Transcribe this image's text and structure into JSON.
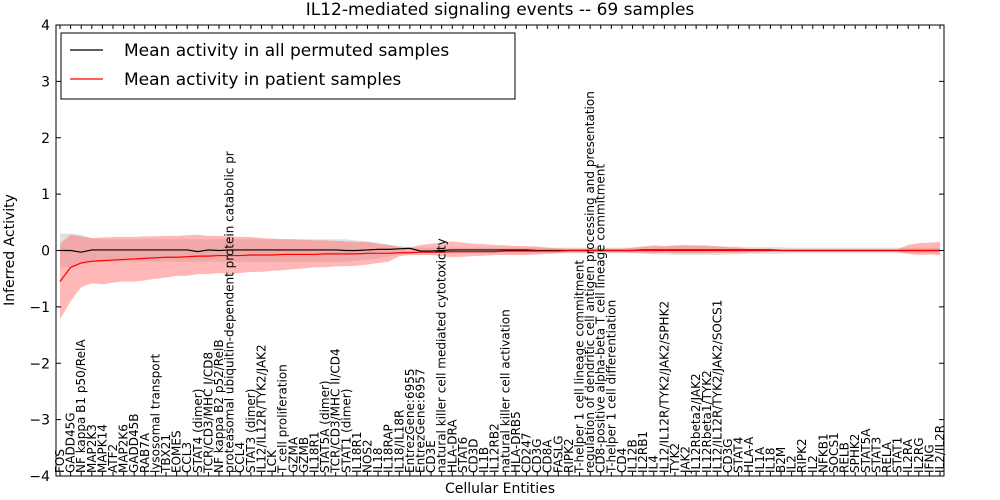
{
  "chart_data": {
    "type": "line",
    "title": "IL12-mediated signaling events -- 69 samples",
    "xlabel": "Cellular Entities",
    "ylabel": "Inferred Activity",
    "ylim": [
      -4,
      4
    ],
    "yticks": [
      -4,
      -3,
      -2,
      -1,
      0,
      1,
      2,
      3,
      4
    ],
    "grid": false,
    "legend_position": "top-left",
    "colors": {
      "permuted": "#000000",
      "patient": "#ff0000",
      "permuted_band": "#c8c8c8",
      "patient_band": "#ff7070"
    },
    "categories": [
      "FOS",
      "GADD45G",
      "NF kappa B1 p50/RelA",
      "MAP2K3",
      "MAPK14",
      "ATF2",
      "MAP2K6",
      "GADD45B",
      "RAB7A",
      "lysosomal transport",
      "TBX21",
      "EOMES",
      "CCL3",
      "STAT4 (dimer)",
      "TCR/CD3/MHC I/CD8",
      "NF kappa B2 p52/RelB",
      "proteasomal ubiquitin-dependent protein catabolic pr",
      "CCL4",
      "STAT3 (dimer)",
      "IL12/IL12R/TYK2/JAK2",
      "LCK",
      "T cell proliferation",
      "GZMA",
      "GZMB",
      "IL18R1",
      "STAT5A (dimer)",
      "TCR/CD3/MHC II/CD4",
      "STAT1 (dimer)",
      "IL18R1",
      "NOS2",
      "IL18",
      "IL18RAP",
      "IL18/IL18R",
      "EntrezGene:6955",
      "EntrezGene:6957",
      "CD3E",
      "natural killer cell mediated cytotoxicity",
      "HLA-DRA",
      "STAT6",
      "CD3D",
      "IL1B",
      "IL12RB2",
      "natural killer cell activation",
      "HLA-DRB5",
      "CD247",
      "CD3G",
      "CD8A",
      "FASLG",
      "RIPK2",
      "T-helper 1 cell lineage commitment",
      "regulation of dendritic cell antigen processing and presentation",
      "CD8-positive alpha-beta T cell lineage commitment",
      "T-helper 1 cell differentiation",
      "CD4",
      "IL12B",
      "IL2RB1",
      "IL4",
      "IL12/IL12R/TYK2/JAK2/SPHK2",
      "TYK2",
      "JAK2",
      "IL12Rbeta2/JAK2",
      "IL12Rbeta1/TYK2",
      "IL12/IL12R/TYK2/JAK2/SOCS1",
      "CD3G",
      "STAT4",
      "HLA-A",
      "IL1A",
      "IL18",
      "B2M",
      "IL2",
      "RIPK2",
      "IL2",
      "NFKB1",
      "SOCS1",
      "RELB",
      "SPHK2",
      "STAT5A",
      "STAT3",
      "RELA",
      "STAT1",
      "IL2RA",
      "IL2RG",
      "IFNG",
      "IL2/IL2R"
    ],
    "series": [
      {
        "name": "Mean activity in all permuted samples",
        "values": [
          0.0,
          0.0,
          -0.03,
          0.01,
          0.01,
          0.01,
          0.01,
          0.01,
          0.01,
          0.01,
          0.01,
          0.01,
          0.01,
          -0.02,
          0.01,
          0.0,
          0.01,
          0.01,
          0.01,
          0.01,
          0.01,
          0.01,
          0.01,
          0.01,
          0.01,
          0.01,
          0.01,
          0.0,
          0.0,
          0.01,
          0.02,
          0.02,
          0.03,
          0.04,
          -0.01,
          -0.01,
          0.0,
          0.01,
          0.01,
          0.01,
          0.01,
          0.01,
          0.01,
          0.01,
          0.01,
          0.0,
          0.0,
          0.0,
          0.0,
          0.0,
          0.0,
          0.0,
          0.0,
          0.0,
          0.0,
          0.01,
          0.01,
          0.01,
          0.01,
          0.01,
          0.01,
          0.01,
          0.01,
          0.01,
          0.01,
          0.01,
          0.01,
          0.01,
          0.0,
          0.0,
          0.0,
          0.0,
          0.0,
          0.0,
          0.0,
          0.0,
          0.0,
          0.0,
          0.0,
          0.0,
          0.0,
          0.0,
          0.0,
          0.0
        ],
        "band_low": [
          -0.3,
          -0.3,
          -0.25,
          -0.22,
          -0.2,
          -0.2,
          -0.2,
          -0.2,
          -0.2,
          -0.2,
          -0.2,
          -0.2,
          -0.2,
          -0.2,
          -0.2,
          -0.2,
          -0.2,
          -0.2,
          -0.2,
          -0.2,
          -0.2,
          -0.2,
          -0.2,
          -0.2,
          -0.2,
          -0.2,
          -0.2,
          -0.2,
          -0.18,
          -0.16,
          -0.14,
          -0.1,
          -0.07,
          -0.05,
          -0.05,
          -0.05,
          -0.05,
          -0.05,
          -0.05,
          -0.05,
          -0.05,
          -0.05,
          -0.05,
          -0.05,
          -0.05,
          -0.05,
          -0.05,
          -0.05,
          -0.05,
          -0.05,
          -0.05,
          -0.05,
          -0.05,
          -0.05,
          -0.05,
          -0.06,
          -0.07,
          -0.07,
          -0.08,
          -0.08,
          -0.08,
          -0.08,
          -0.08,
          -0.07,
          -0.07,
          -0.06,
          -0.06,
          -0.06,
          -0.06,
          -0.05,
          -0.05,
          -0.05,
          -0.05,
          -0.05,
          -0.05,
          -0.05,
          -0.05,
          -0.05,
          -0.05,
          -0.05,
          -0.05,
          -0.05,
          -0.05,
          -0.05
        ],
        "band_high": [
          0.3,
          0.3,
          0.28,
          0.22,
          0.2,
          0.2,
          0.2,
          0.2,
          0.2,
          0.2,
          0.2,
          0.2,
          0.2,
          0.2,
          0.2,
          0.2,
          0.2,
          0.2,
          0.2,
          0.2,
          0.2,
          0.2,
          0.2,
          0.2,
          0.2,
          0.2,
          0.2,
          0.2,
          0.18,
          0.16,
          0.14,
          0.1,
          0.08,
          0.05,
          0.05,
          0.05,
          0.05,
          0.05,
          0.05,
          0.05,
          0.05,
          0.05,
          0.05,
          0.05,
          0.05,
          0.05,
          0.05,
          0.05,
          0.05,
          0.05,
          0.05,
          0.05,
          0.05,
          0.05,
          0.05,
          0.06,
          0.07,
          0.07,
          0.08,
          0.08,
          0.08,
          0.08,
          0.08,
          0.07,
          0.07,
          0.06,
          0.06,
          0.06,
          0.06,
          0.05,
          0.05,
          0.05,
          0.05,
          0.05,
          0.05,
          0.05,
          0.05,
          0.05,
          0.05,
          0.05,
          0.05,
          0.05,
          0.05,
          0.05
        ]
      },
      {
        "name": "Mean activity in patient samples",
        "values": [
          -0.55,
          -0.3,
          -0.22,
          -0.19,
          -0.18,
          -0.17,
          -0.16,
          -0.15,
          -0.14,
          -0.13,
          -0.12,
          -0.12,
          -0.11,
          -0.1,
          -0.1,
          -0.09,
          -0.09,
          -0.09,
          -0.08,
          -0.08,
          -0.08,
          -0.07,
          -0.07,
          -0.07,
          -0.07,
          -0.06,
          -0.06,
          -0.06,
          -0.06,
          -0.05,
          -0.05,
          -0.05,
          -0.04,
          -0.04,
          -0.03,
          -0.03,
          -0.03,
          -0.02,
          -0.02,
          -0.02,
          -0.02,
          -0.02,
          -0.01,
          -0.01,
          -0.01,
          -0.01,
          -0.01,
          -0.01,
          0.0,
          0.0,
          0.0,
          0.0,
          0.0,
          0.0,
          0.0,
          0.0,
          0.0,
          0.0,
          0.0,
          0.0,
          0.0,
          0.0,
          0.0,
          0.0,
          0.0,
          0.0,
          0.0,
          0.0,
          0.0,
          0.0,
          0.0,
          0.0,
          0.0,
          0.0,
          0.0,
          0.0,
          0.0,
          0.0,
          0.0,
          0.0,
          0.0,
          0.0,
          0.0,
          0.0
        ],
        "band_low": [
          -1.22,
          -0.9,
          -0.65,
          -0.58,
          -0.6,
          -0.57,
          -0.55,
          -0.55,
          -0.53,
          -0.5,
          -0.48,
          -0.45,
          -0.45,
          -0.42,
          -0.42,
          -0.4,
          -0.42,
          -0.4,
          -0.38,
          -0.38,
          -0.36,
          -0.35,
          -0.33,
          -0.32,
          -0.3,
          -0.3,
          -0.28,
          -0.28,
          -0.27,
          -0.25,
          -0.22,
          -0.2,
          -0.1,
          -0.08,
          -0.08,
          -0.08,
          -0.1,
          -0.12,
          -0.11,
          -0.1,
          -0.09,
          -0.08,
          -0.08,
          -0.08,
          -0.08,
          -0.07,
          -0.06,
          -0.05,
          -0.03,
          -0.03,
          -0.03,
          -0.03,
          -0.03,
          -0.03,
          -0.04,
          -0.04,
          -0.05,
          -0.04,
          -0.05,
          -0.05,
          -0.05,
          -0.05,
          -0.04,
          -0.04,
          -0.04,
          -0.03,
          -0.03,
          -0.02,
          -0.02,
          -0.02,
          -0.02,
          -0.02,
          -0.02,
          -0.02,
          -0.02,
          -0.02,
          -0.02,
          -0.02,
          -0.02,
          -0.02,
          -0.06,
          -0.08,
          -0.07,
          -0.08
        ],
        "band_high": [
          0.12,
          0.28,
          0.25,
          0.22,
          0.23,
          0.24,
          0.24,
          0.24,
          0.25,
          0.25,
          0.26,
          0.26,
          0.27,
          0.28,
          0.26,
          0.26,
          0.25,
          0.24,
          0.24,
          0.22,
          0.21,
          0.2,
          0.2,
          0.19,
          0.18,
          0.18,
          0.17,
          0.16,
          0.15,
          0.15,
          0.12,
          0.1,
          0.06,
          0.05,
          0.1,
          0.12,
          0.14,
          0.16,
          0.14,
          0.12,
          0.11,
          0.1,
          0.09,
          0.08,
          0.08,
          0.07,
          0.05,
          0.04,
          0.03,
          0.03,
          0.03,
          0.03,
          0.03,
          0.03,
          0.05,
          0.07,
          0.09,
          0.08,
          0.09,
          0.1,
          0.09,
          0.09,
          0.07,
          0.06,
          0.05,
          0.03,
          0.03,
          0.03,
          0.02,
          0.02,
          0.02,
          0.02,
          0.02,
          0.02,
          0.02,
          0.02,
          0.02,
          0.02,
          0.02,
          0.02,
          0.1,
          0.13,
          0.14,
          0.15
        ]
      }
    ]
  }
}
